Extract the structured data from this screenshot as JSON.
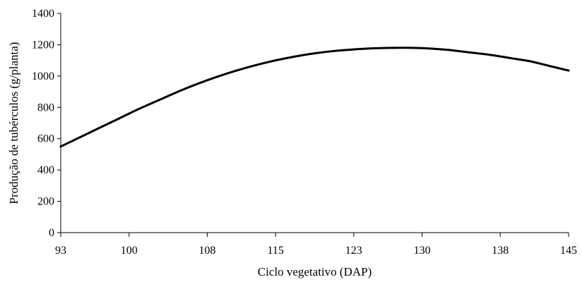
{
  "chart_data": {
    "type": "line",
    "title": "",
    "xlabel": "Ciclo vegetativo (DAP)",
    "ylabel": "Produção de tubérculos (g/planta)",
    "xlim": [
      93,
      145
    ],
    "ylim": [
      0,
      1400
    ],
    "x_ticks": [
      93,
      100,
      108,
      115,
      123,
      130,
      138,
      145
    ],
    "x_tick_labels": [
      "93",
      "100",
      "108",
      "115",
      "123",
      "130",
      "138",
      "145"
    ],
    "y_ticks": [
      0,
      200,
      400,
      600,
      800,
      1000,
      1200,
      1400
    ],
    "y_tick_labels": [
      "0",
      "200",
      "400",
      "600",
      "800",
      "1000",
      "1200",
      "1400"
    ],
    "grid": false,
    "legend": "none",
    "line_color": "#000000",
    "series": [
      {
        "x": [
          93,
          95,
          97,
          99,
          101,
          103,
          105,
          107,
          109,
          111,
          113,
          115,
          117,
          119,
          121,
          123,
          125,
          127,
          129,
          131,
          133,
          135,
          137,
          139,
          141,
          143,
          145
        ],
        "values": [
          550,
          610,
          670,
          730,
          790,
          845,
          900,
          950,
          995,
          1035,
          1070,
          1100,
          1125,
          1145,
          1160,
          1170,
          1177,
          1180,
          1180,
          1175,
          1165,
          1150,
          1135,
          1115,
          1095,
          1065,
          1035
        ]
      }
    ]
  }
}
